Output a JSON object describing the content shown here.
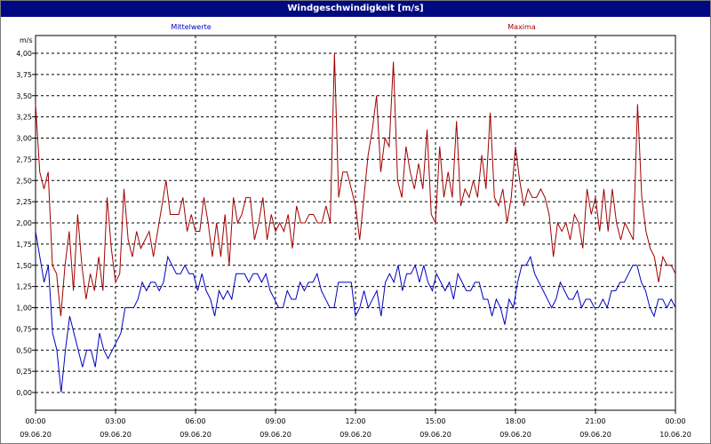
{
  "window": {
    "title": "Windgeschwindigkeit [m/s]"
  },
  "chart_data": {
    "type": "line",
    "title": "Windgeschwindigkeit [m/s]",
    "ylabel": "m/s",
    "ylim": [
      0,
      4
    ],
    "yticks": [
      "0,00",
      "0,25",
      "0,50",
      "0,75",
      "1,00",
      "1,25",
      "1,50",
      "1,75",
      "2,00",
      "2,25",
      "2,50",
      "2,75",
      "3,00",
      "3,25",
      "3,50",
      "3,75",
      "4,00"
    ],
    "xticks": [
      {
        "time": "00:00",
        "date": "09.06.20"
      },
      {
        "time": "03:00",
        "date": "09.06.20"
      },
      {
        "time": "06:00",
        "date": "09.06.20"
      },
      {
        "time": "09:00",
        "date": "09.06.20"
      },
      {
        "time": "12:00",
        "date": "09.06.20"
      },
      {
        "time": "15:00",
        "date": "09.06.20"
      },
      {
        "time": "18:00",
        "date": "09.06.20"
      },
      {
        "time": "21:00",
        "date": "09.06.20"
      },
      {
        "time": "00:00",
        "date": "10.06.20"
      }
    ],
    "x_start": "09.06.20 00:00",
    "x_end": "10.06.20 00:00",
    "x_interval": "10 min",
    "grid": true,
    "legend": "top",
    "series": [
      {
        "name": "Mittelwerte",
        "color": "#0000c0",
        "values": [
          1.9,
          1.6,
          1.3,
          1.5,
          0.7,
          0.5,
          0.0,
          0.5,
          0.9,
          0.7,
          0.5,
          0.3,
          0.5,
          0.5,
          0.3,
          0.7,
          0.5,
          0.4,
          0.5,
          0.6,
          0.7,
          1.0,
          1.0,
          1.0,
          1.1,
          1.3,
          1.2,
          1.3,
          1.3,
          1.2,
          1.3,
          1.6,
          1.5,
          1.4,
          1.4,
          1.5,
          1.4,
          1.4,
          1.2,
          1.4,
          1.2,
          1.1,
          0.9,
          1.2,
          1.1,
          1.2,
          1.1,
          1.4,
          1.4,
          1.4,
          1.3,
          1.4,
          1.4,
          1.3,
          1.4,
          1.2,
          1.1,
          1.0,
          1.0,
          1.2,
          1.1,
          1.1,
          1.3,
          1.2,
          1.3,
          1.3,
          1.4,
          1.2,
          1.1,
          1.0,
          1.0,
          1.3,
          1.3,
          1.3,
          1.3,
          0.9,
          1.0,
          1.2,
          1.0,
          1.1,
          1.2,
          0.9,
          1.3,
          1.4,
          1.3,
          1.5,
          1.2,
          1.4,
          1.4,
          1.5,
          1.3,
          1.5,
          1.3,
          1.2,
          1.4,
          1.3,
          1.2,
          1.3,
          1.1,
          1.4,
          1.3,
          1.2,
          1.2,
          1.3,
          1.3,
          1.1,
          1.1,
          0.9,
          1.1,
          1.0,
          0.8,
          1.1,
          1.0,
          1.3,
          1.5,
          1.5,
          1.6,
          1.4,
          1.3,
          1.2,
          1.1,
          1.0,
          1.1,
          1.3,
          1.2,
          1.1,
          1.1,
          1.2,
          1.0,
          1.1,
          1.1,
          1.0,
          1.0,
          1.1,
          1.0,
          1.2,
          1.2,
          1.3,
          1.3,
          1.4,
          1.5,
          1.5,
          1.3,
          1.2,
          1.0,
          0.9,
          1.1,
          1.1,
          1.0,
          1.1,
          1.0
        ]
      },
      {
        "name": "Maxima",
        "color": "#a00000",
        "values": [
          3.4,
          2.6,
          2.4,
          2.6,
          1.5,
          1.4,
          0.9,
          1.5,
          1.9,
          1.2,
          2.1,
          1.5,
          1.1,
          1.4,
          1.2,
          1.6,
          1.2,
          2.3,
          1.7,
          1.3,
          1.4,
          2.4,
          1.8,
          1.6,
          1.9,
          1.7,
          1.8,
          1.9,
          1.6,
          1.9,
          2.2,
          2.5,
          2.1,
          2.1,
          2.1,
          2.3,
          1.9,
          2.1,
          1.9,
          1.9,
          2.3,
          2.0,
          1.6,
          2.0,
          1.6,
          2.1,
          1.5,
          2.3,
          2.0,
          2.1,
          2.3,
          2.3,
          1.8,
          2.0,
          2.3,
          1.8,
          2.1,
          1.9,
          2.0,
          1.9,
          2.1,
          1.7,
          2.2,
          2.0,
          2.0,
          2.1,
          2.1,
          2.0,
          2.0,
          2.2,
          2.0,
          4.0,
          2.3,
          2.6,
          2.6,
          2.4,
          2.2,
          1.8,
          2.3,
          2.8,
          3.1,
          3.5,
          2.6,
          3.0,
          2.9,
          3.9,
          2.5,
          2.3,
          2.9,
          2.6,
          2.4,
          2.7,
          2.4,
          3.1,
          2.1,
          2.0,
          2.9,
          2.3,
          2.6,
          2.3,
          3.2,
          2.2,
          2.4,
          2.3,
          2.5,
          2.3,
          2.8,
          2.4,
          3.3,
          2.3,
          2.2,
          2.4,
          2.0,
          2.3,
          2.9,
          2.5,
          2.2,
          2.4,
          2.3,
          2.3,
          2.4,
          2.3,
          2.1,
          1.6,
          2.0,
          1.9,
          2.0,
          1.8,
          2.1,
          2.0,
          1.7,
          2.4,
          2.1,
          2.3,
          1.9,
          2.4,
          1.9,
          2.4,
          2.0,
          1.8,
          2.0,
          1.9,
          1.8,
          3.4,
          2.3,
          1.9,
          1.7,
          1.6,
          1.3,
          1.6,
          1.5,
          1.5,
          1.4
        ]
      }
    ]
  }
}
